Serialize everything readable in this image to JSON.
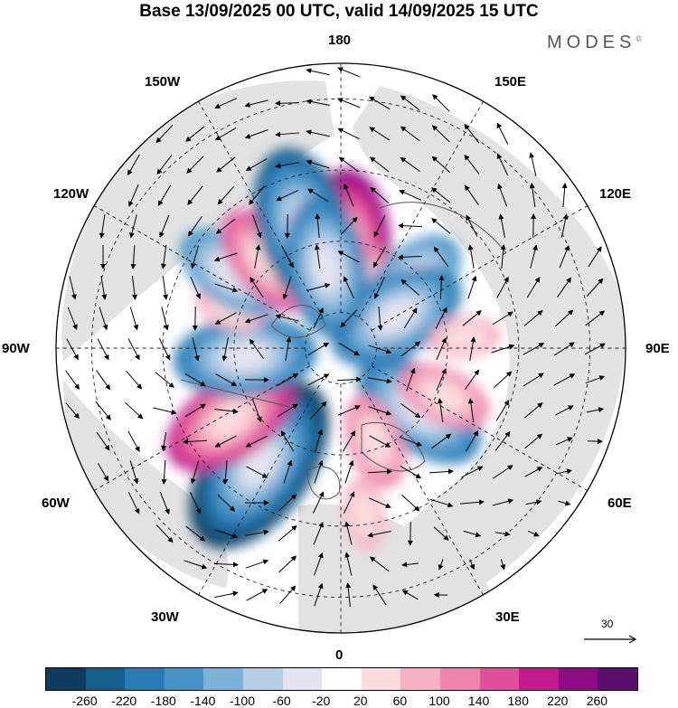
{
  "title": "Base 13/09/2025 00 UTC, valid 14/09/2025 15 UTC",
  "brand": {
    "name": "MODES",
    "mark": "©"
  },
  "longitude_labels": {
    "top": "180",
    "bottom": "0",
    "left": "90W",
    "right": "90E",
    "upper_left_1": "150W",
    "upper_left_2": "120W",
    "upper_right_1": "150E",
    "upper_right_2": "120E",
    "lower_left_1": "60W",
    "lower_left_2": "30W",
    "lower_right_1": "60E",
    "lower_right_2": "30E"
  },
  "reference_vector": {
    "value": "30"
  },
  "colorbar": {
    "colors": [
      "#0e3b5e",
      "#165f8d",
      "#2a7ab4",
      "#4a95c8",
      "#7eb3d9",
      "#b6cde6",
      "#e4e4f1",
      "#ffffff",
      "#fbdcdc",
      "#f6b1c4",
      "#ef85ac",
      "#e0509b",
      "#c01a8c",
      "#8e0b86",
      "#5c0f6d"
    ],
    "ticks": [
      "-260",
      "-220",
      "-180",
      "-140",
      "-100",
      "-60",
      "-20",
      "20",
      "60",
      "100",
      "140",
      "180",
      "220",
      "260"
    ]
  },
  "anomaly_centers": [
    {
      "lon": 178,
      "colat": 27,
      "value": 240
    },
    {
      "lon": 162,
      "colat": 17,
      "value": 130
    },
    {
      "lon": 133,
      "colat": 27,
      "value": -160
    },
    {
      "lon": 120,
      "colat": 18,
      "value": -200
    },
    {
      "lon": 95,
      "colat": 35,
      "value": 90
    },
    {
      "lon": 52,
      "colat": 28,
      "value": -200
    },
    {
      "lon": 65,
      "colat": 32,
      "value": 120
    },
    {
      "lon": 20,
      "colat": 28,
      "value": 130
    },
    {
      "lon": 8,
      "colat": 47,
      "value": 70
    },
    {
      "lon": -35,
      "colat": 40,
      "value": -260
    },
    {
      "lon": -57,
      "colat": 37,
      "value": 210
    },
    {
      "lon": -85,
      "colat": 27,
      "value": -200
    },
    {
      "lon": -110,
      "colat": 33,
      "value": 90
    },
    {
      "lon": -125,
      "colat": 37,
      "value": -150
    },
    {
      "lon": -140,
      "colat": 32,
      "value": 170
    },
    {
      "lon": -163,
      "colat": 35,
      "value": -220
    },
    {
      "lon": -170,
      "colat": 23,
      "value": -180
    }
  ]
}
